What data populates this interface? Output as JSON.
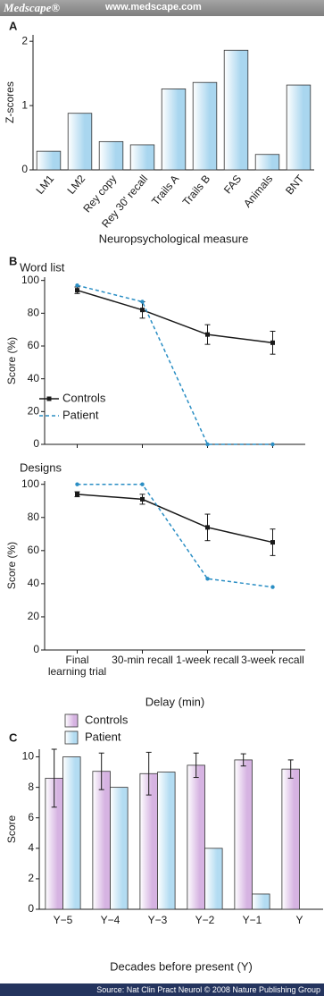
{
  "header": {
    "logo": "Medscape®",
    "url": "www.medscape.com"
  },
  "chart_data": [
    {
      "type": "bar",
      "panel": "A",
      "y_label": "Z-scores",
      "x_label": "Neuropsychological measure",
      "categories": [
        "LM1",
        "LM2",
        "Rey copy",
        "Rey 30' recall",
        "Trails A",
        "Trails B",
        "FAS",
        "Animals",
        "BNT"
      ],
      "values": [
        0.29,
        0.88,
        0.44,
        0.39,
        1.26,
        1.36,
        1.86,
        0.24,
        1.32
      ],
      "color": "#a9d6ef",
      "ylim": [
        0,
        2.1
      ],
      "yticks": [
        0,
        1,
        2
      ]
    },
    {
      "type": "line",
      "panel": "B",
      "title": "Word list",
      "y_label": "Score (%)",
      "categories": [
        null,
        null,
        null,
        null
      ],
      "series": [
        {
          "name": "Controls",
          "color": "#1a1a1a",
          "marker": "square",
          "line_style": "solid",
          "values": [
            94,
            82,
            67,
            62
          ],
          "errors": [
            2,
            5,
            6,
            7
          ]
        },
        {
          "name": "Patient",
          "color": "#2a8ec4",
          "marker": "circle",
          "line_style": "dashed",
          "values": [
            97,
            87,
            0,
            0
          ]
        }
      ],
      "ylim": [
        0,
        102
      ],
      "yticks": [
        0,
        20,
        40,
        60,
        80,
        100
      ],
      "legend": "left"
    },
    {
      "type": "line",
      "title": "Designs",
      "y_label": "Score (%)",
      "x_label": "Delay (min)",
      "categories": [
        "Final learning trial",
        "30-min recall",
        "1-week recall",
        "3-week recall"
      ],
      "series": [
        {
          "color": "#1a1a1a",
          "marker": "square",
          "line_style": "solid",
          "values": [
            94,
            91,
            74,
            65
          ],
          "errors": [
            1.5,
            3,
            8,
            8
          ]
        },
        {
          "color": "#2a8ec4",
          "marker": "circle",
          "line_style": "dashed",
          "values": [
            100,
            100,
            43,
            38
          ]
        }
      ],
      "ylim": [
        0,
        102
      ],
      "yticks": [
        0,
        20,
        40,
        60,
        80,
        100
      ]
    },
    {
      "type": "bar",
      "panel": "C",
      "y_label": "Score",
      "x_label": "Decades before present (Y)",
      "categories": [
        "Y−5",
        "Y−4",
        "Y−3",
        "Y−2",
        "Y−1",
        "Y"
      ],
      "series": [
        {
          "name": "Controls",
          "color": "#d6b3e2",
          "values": [
            8.6,
            9.05,
            8.9,
            9.45,
            9.8,
            9.2
          ],
          "errors": [
            1.9,
            1.2,
            1.4,
            0.8,
            0.4,
            0.6
          ]
        },
        {
          "name": "Patient",
          "color": "#b3dcf2",
          "values": [
            10,
            8,
            9,
            4,
            1,
            null
          ]
        }
      ],
      "ylim": [
        0,
        10.5
      ],
      "yticks": [
        0,
        2,
        4,
        6,
        8,
        10
      ],
      "legend": "top-left"
    }
  ],
  "footer": {
    "source": "Source: Nat Clin Pract Neurol © 2008 Nature Publishing Group"
  }
}
